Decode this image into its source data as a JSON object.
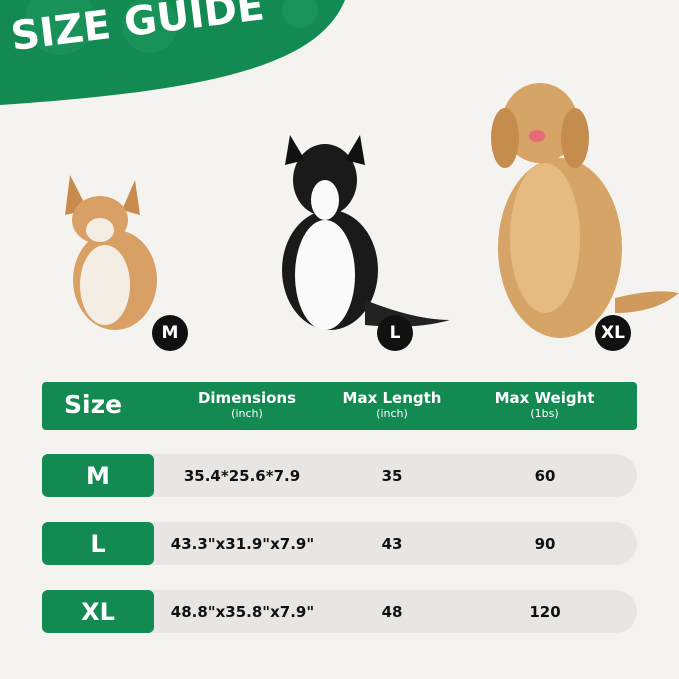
{
  "title": "SIZE GUIDE",
  "colors": {
    "brand_green": "#138a52",
    "background": "#f5f3ef",
    "row_bg": "#e7e6e3"
  },
  "dogs": [
    {
      "size": "M"
    },
    {
      "size": "L"
    },
    {
      "size": "XL"
    }
  ],
  "table": {
    "headers": {
      "size": "Size",
      "dimensions": "Dimensions",
      "dimensions_unit": "(inch)",
      "length": "Max Length",
      "length_unit": "(inch)",
      "weight": "Max Weight",
      "weight_unit": "(1bs)"
    },
    "rows": [
      {
        "size": "M",
        "dimensions": "35.4*25.6*7.9",
        "length": "35",
        "weight": "60"
      },
      {
        "size": "L",
        "dimensions": "43.3\"x31.9\"x7.9\"",
        "length": "43",
        "weight": "90"
      },
      {
        "size": "XL",
        "dimensions": "48.8\"x35.8\"x7.9\"",
        "length": "48",
        "weight": "120"
      }
    ]
  }
}
